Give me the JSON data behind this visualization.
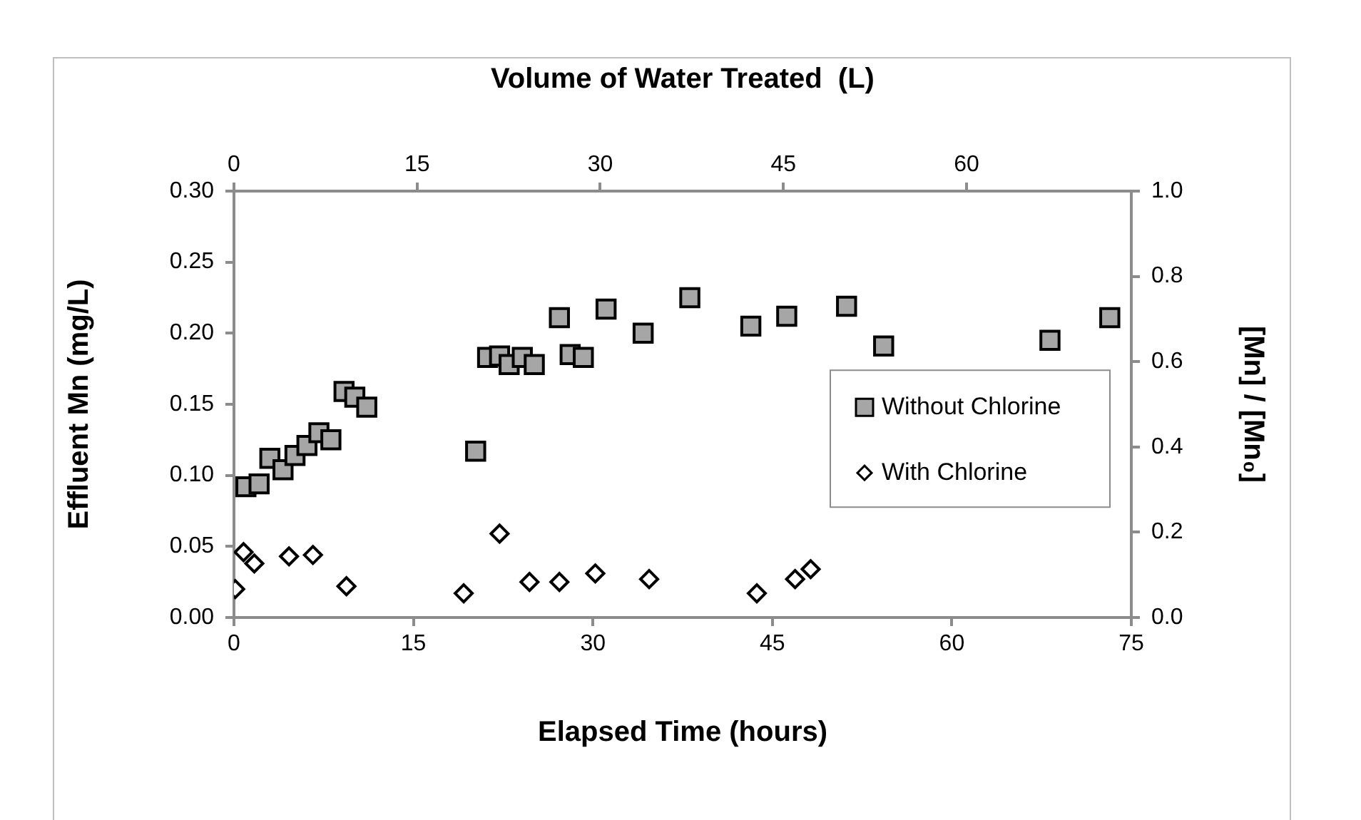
{
  "chart_data": {
    "type": "scatter",
    "xlabel": "Elapsed Time (hours)",
    "ylabel": "Effluent Mn (mg/L)",
    "y2label": "[Mn] / [Mn₀]",
    "x2label": "Volume of Water Treated  (L)",
    "xlim": [
      0,
      75
    ],
    "xticks": [
      0,
      15,
      30,
      45,
      60,
      75
    ],
    "ylim": [
      0,
      0.3
    ],
    "yticks": [
      {
        "value": 0,
        "label": "0.00"
      },
      0.05,
      {
        "value": 0.1,
        "label": "0.10"
      },
      0.15,
      {
        "value": 0.2,
        "label": "0.20"
      },
      0.25,
      {
        "value": 0.3,
        "label": "0.30"
      }
    ],
    "y2lim": [
      0,
      1
    ],
    "y2ticks": [
      {
        "value": 0,
        "label": "0.0"
      },
      0.2,
      0.4,
      0.6,
      0.8,
      {
        "value": 1,
        "label": "1.0"
      }
    ],
    "x2lim": [
      0,
      73.5
    ],
    "x2ticks": [
      0,
      15,
      30,
      45,
      60
    ],
    "grid": false,
    "legend": "right",
    "series": [
      {
        "name": "Without Chlorine",
        "color": "#a6a6a6",
        "marker": "square",
        "x": [
          1.0,
          2.1,
          3.0,
          4.1,
          5.1,
          6.1,
          7.1,
          8.1,
          9.2,
          10.1,
          11.1,
          20.2,
          21.2,
          22.2,
          23.0,
          24.1,
          25.1,
          27.2,
          28.1,
          29.2,
          31.1,
          34.2,
          38.1,
          43.2,
          46.2,
          51.2,
          54.3,
          68.2,
          73.2
        ],
        "values": [
          0.092,
          0.094,
          0.112,
          0.104,
          0.114,
          0.121,
          0.13,
          0.125,
          0.159,
          0.155,
          0.148,
          0.117,
          0.183,
          0.184,
          0.178,
          0.183,
          0.178,
          0.211,
          0.185,
          0.183,
          0.217,
          0.2,
          0.225,
          0.205,
          0.212,
          0.219,
          0.191,
          0.195,
          0.211
        ]
      },
      {
        "name": "With Chlorine",
        "color": "#ffffff",
        "marker": "diamond",
        "x": [
          0.1,
          0.8,
          1.7,
          4.6,
          6.6,
          9.4,
          19.2,
          22.2,
          24.7,
          27.2,
          30.2,
          34.7,
          43.7,
          46.9,
          48.2
        ],
        "values": [
          0.02,
          0.046,
          0.038,
          0.043,
          0.044,
          0.022,
          0.017,
          0.059,
          0.025,
          0.025,
          0.031,
          0.027,
          0.017,
          0.027,
          0.034
        ]
      }
    ]
  }
}
